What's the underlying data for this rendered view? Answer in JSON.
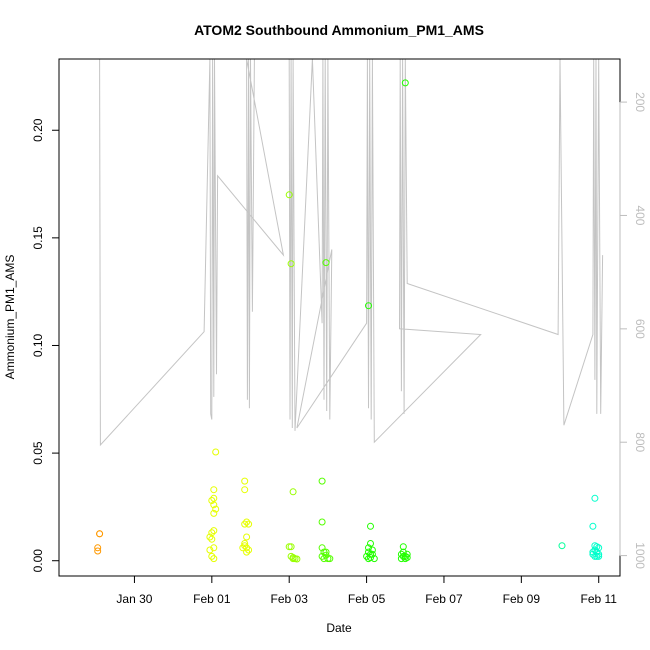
{
  "chart_data": {
    "type": "scatter",
    "title": "ATOM2 Southbound Ammonium_PM1_AMS",
    "xlabel": "Date",
    "ylabel": "Ammonium_PM1_AMS",
    "x_unit": "day of year",
    "x_ticks": [
      {
        "x": 30,
        "label": "Jan 30"
      },
      {
        "x": 32,
        "label": "Feb 01"
      },
      {
        "x": 34,
        "label": "Feb 03"
      },
      {
        "x": 36,
        "label": "Feb 05"
      },
      {
        "x": 38,
        "label": "Feb 07"
      },
      {
        "x": 40,
        "label": "Feb 09"
      },
      {
        "x": 42,
        "label": "Feb 11"
      }
    ],
    "y_ticks": [
      {
        "y": 0.0,
        "label": "0.00"
      },
      {
        "y": 0.05,
        "label": "0.05"
      },
      {
        "y": 0.1,
        "label": "0.10"
      },
      {
        "y": 0.15,
        "label": "0.15"
      },
      {
        "y": 0.2,
        "label": "0.20"
      }
    ],
    "y2_ticks": [
      {
        "y": 200,
        "label": "200"
      },
      {
        "y": 400,
        "label": "400"
      },
      {
        "y": 600,
        "label": "600"
      },
      {
        "y": 800,
        "label": "800"
      },
      {
        "y": 1000,
        "label": "1000"
      }
    ],
    "xlim": [
      28.05,
      42.55
    ],
    "ylim": [
      -0.0071,
      0.2331
    ],
    "y2lim": [
      1036,
      124
    ],
    "grid": false,
    "colors": {
      "pressure_line": "#c4c4c4",
      "axis": "#000000",
      "right_axis": "#bdbdbd"
    },
    "series": [
      {
        "color": "#ff9900",
        "points": [
          [
            29.1,
            0.0125
          ],
          [
            29.1,
            0.0125
          ],
          [
            29.05,
            0.006
          ],
          [
            29.05,
            0.0045
          ]
        ]
      },
      {
        "color": "#e6ff00",
        "points": [
          [
            32.1,
            0.0505
          ],
          [
            32.05,
            0.033
          ],
          [
            32.05,
            0.029
          ],
          [
            32.0,
            0.028
          ],
          [
            32.05,
            0.026
          ],
          [
            32.1,
            0.024
          ],
          [
            32.05,
            0.022
          ],
          [
            32.05,
            0.014
          ],
          [
            32.0,
            0.013
          ],
          [
            31.95,
            0.011
          ],
          [
            32.0,
            0.01
          ],
          [
            32.05,
            0.006
          ],
          [
            31.95,
            0.005
          ],
          [
            32.0,
            0.002
          ],
          [
            32.05,
            0.001
          ],
          [
            32.85,
            0.037
          ],
          [
            32.85,
            0.033
          ],
          [
            32.9,
            0.018
          ],
          [
            32.85,
            0.017
          ],
          [
            32.95,
            0.017
          ],
          [
            32.9,
            0.011
          ],
          [
            32.85,
            0.008
          ],
          [
            32.85,
            0.007
          ],
          [
            32.8,
            0.006
          ],
          [
            32.9,
            0.006
          ],
          [
            32.95,
            0.005
          ],
          [
            32.9,
            0.004
          ]
        ]
      },
      {
        "color": "#99ff00",
        "points": [
          [
            34.0,
            0.17
          ],
          [
            34.05,
            0.138
          ],
          [
            34.1,
            0.032
          ],
          [
            34.0,
            0.0065
          ],
          [
            34.05,
            0.0065
          ],
          [
            34.1,
            0.001
          ],
          [
            34.15,
            0.001
          ],
          [
            34.2,
            0.0008
          ],
          [
            34.05,
            0.002
          ],
          [
            34.1,
            0.0015
          ]
        ]
      },
      {
        "color": "#55ff00",
        "points": [
          [
            34.95,
            0.1385
          ],
          [
            34.85,
            0.037
          ],
          [
            34.85,
            0.018
          ],
          [
            34.85,
            0.006
          ],
          [
            34.9,
            0.004
          ],
          [
            34.95,
            0.004
          ],
          [
            34.85,
            0.002
          ],
          [
            34.9,
            0.001
          ],
          [
            35.0,
            0.001
          ],
          [
            34.95,
            0.0025
          ],
          [
            35.05,
            0.001
          ]
        ]
      },
      {
        "color": "#22ff00",
        "points": [
          [
            36.05,
            0.1185
          ],
          [
            36.1,
            0.016
          ],
          [
            36.1,
            0.008
          ],
          [
            36.05,
            0.006
          ],
          [
            36.15,
            0.005
          ],
          [
            36.05,
            0.004
          ],
          [
            36.1,
            0.003
          ],
          [
            36.15,
            0.003
          ],
          [
            36.0,
            0.002
          ],
          [
            36.05,
            0.001
          ],
          [
            36.2,
            0.001
          ],
          [
            36.1,
            0.0015
          ],
          [
            37.0,
            0.222
          ],
          [
            36.95,
            0.0065
          ],
          [
            36.95,
            0.004
          ],
          [
            36.9,
            0.003
          ],
          [
            37.05,
            0.003
          ],
          [
            37.0,
            0.002
          ],
          [
            36.95,
            0.002
          ],
          [
            36.9,
            0.001
          ],
          [
            37.05,
            0.0015
          ],
          [
            37.0,
            0.001
          ]
        ]
      },
      {
        "color": "#00ff99",
        "points": [
          [
            41.05,
            0.007
          ]
        ]
      },
      {
        "color": "#00ffcc",
        "points": [
          [
            41.9,
            0.029
          ],
          [
            41.85,
            0.016
          ],
          [
            41.9,
            0.007
          ],
          [
            41.95,
            0.0065
          ],
          [
            42.0,
            0.006
          ],
          [
            41.9,
            0.005
          ],
          [
            41.95,
            0.004
          ],
          [
            41.85,
            0.004
          ],
          [
            42.0,
            0.003
          ],
          [
            41.9,
            0.002
          ],
          [
            41.95,
            0.002
          ],
          [
            41.85,
            0.003
          ],
          [
            42.0,
            0.002
          ]
        ]
      }
    ],
    "pressure_line": [
      [
        29.1,
        124
      ],
      [
        29.12,
        805
      ],
      [
        31.8,
        605
      ],
      [
        31.95,
        124
      ],
      [
        31.97,
        750
      ],
      [
        32.0,
        760
      ],
      [
        32.02,
        124
      ],
      [
        32.05,
        720
      ],
      [
        32.07,
        124
      ],
      [
        32.12,
        680
      ],
      [
        32.15,
        330
      ],
      [
        33.85,
        470
      ],
      [
        32.9,
        124
      ],
      [
        32.92,
        725
      ],
      [
        32.95,
        124
      ],
      [
        32.97,
        740
      ],
      [
        33.0,
        124
      ],
      [
        33.05,
        570
      ],
      [
        33.1,
        124
      ],
      [
        34.0,
        124
      ],
      [
        34.02,
        760
      ],
      [
        34.05,
        124
      ],
      [
        34.08,
        775
      ],
      [
        34.1,
        124
      ],
      [
        34.15,
        780
      ],
      [
        34.6,
        124
      ],
      [
        34.85,
        590
      ],
      [
        34.87,
        124
      ],
      [
        34.9,
        725
      ],
      [
        34.93,
        124
      ],
      [
        34.97,
        745
      ],
      [
        35.0,
        124
      ],
      [
        35.05,
        760
      ],
      [
        35.1,
        460
      ],
      [
        34.2,
        775
      ],
      [
        36.0,
        590
      ],
      [
        36.02,
        124
      ],
      [
        36.05,
        740
      ],
      [
        36.08,
        124
      ],
      [
        36.12,
        760
      ],
      [
        36.15,
        124
      ],
      [
        36.2,
        800
      ],
      [
        38.95,
        610
      ],
      [
        36.85,
        600
      ],
      [
        36.87,
        124
      ],
      [
        36.9,
        710
      ],
      [
        36.93,
        124
      ],
      [
        36.97,
        750
      ],
      [
        37.0,
        124
      ],
      [
        37.05,
        520
      ],
      [
        40.95,
        610
      ],
      [
        41.0,
        124
      ],
      [
        41.1,
        770
      ],
      [
        41.85,
        610
      ],
      [
        41.87,
        124
      ],
      [
        41.9,
        690
      ],
      [
        41.93,
        124
      ],
      [
        41.95,
        750
      ],
      [
        42.0,
        124
      ],
      [
        42.05,
        750
      ],
      [
        42.1,
        470
      ]
    ]
  }
}
